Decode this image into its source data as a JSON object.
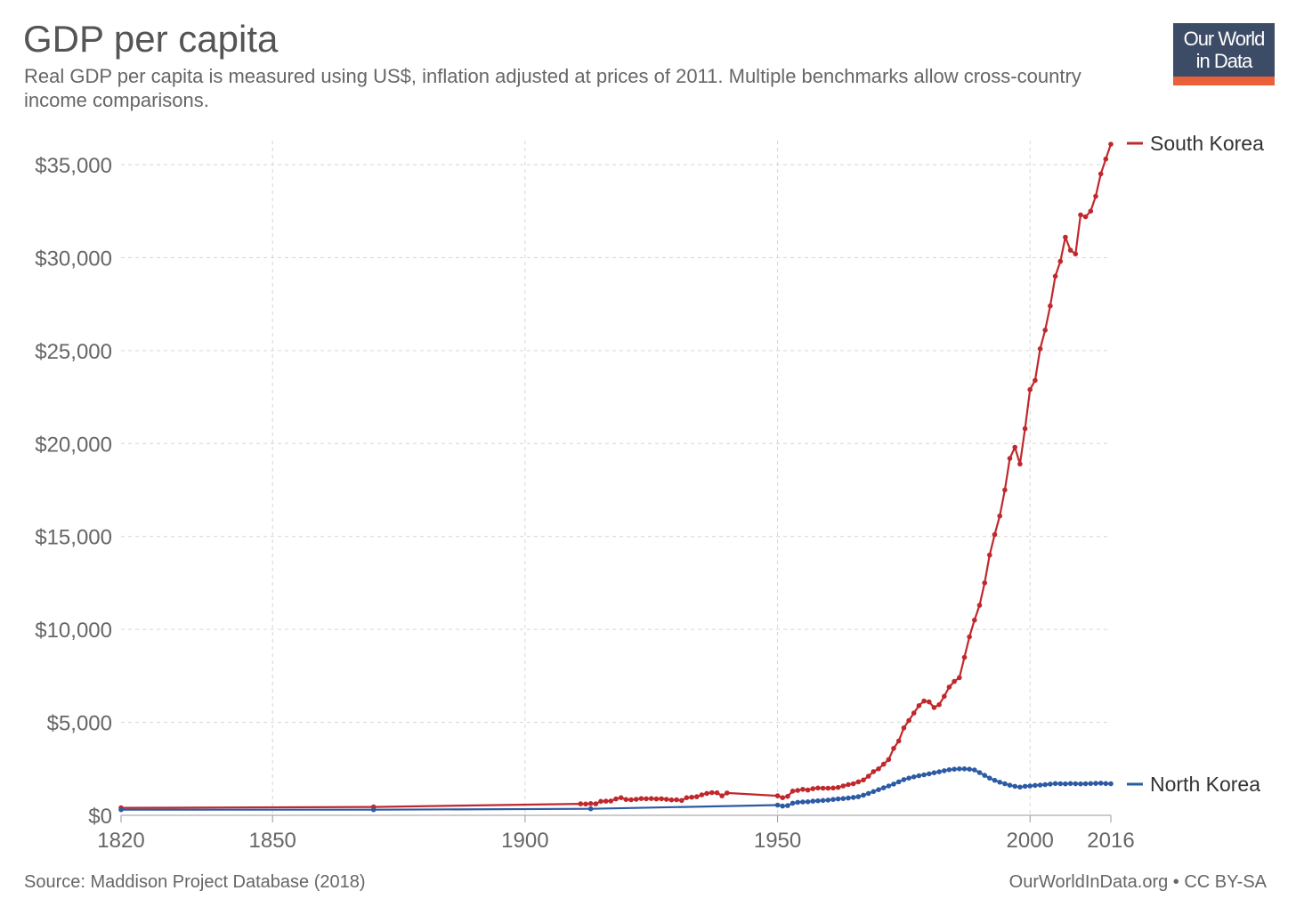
{
  "header": {
    "title": "GDP per capita",
    "subtitle": "Real GDP per capita is measured using US$, inflation adjusted at prices of 2011. Multiple benchmarks allow cross-country income comparisons."
  },
  "logo": {
    "line1": "Our World",
    "line2": "in Data",
    "bg_color": "#3d4c66",
    "accent_color": "#e9603a"
  },
  "footer": {
    "source": "Source: Maddison Project Database (2018)",
    "license": "OurWorldInData.org • CC BY-SA"
  },
  "chart_data": {
    "type": "line",
    "title": "GDP per capita",
    "xlabel": "",
    "ylabel": "",
    "xlim": [
      1820,
      2016
    ],
    "ylim": [
      0,
      35000
    ],
    "grid": true,
    "x_ticks": [
      1820,
      1850,
      1900,
      1950,
      2000,
      2016
    ],
    "x_tick_labels": [
      "1820",
      "1850",
      "1900",
      "1950",
      "2000",
      "2016"
    ],
    "y_ticks": [
      0,
      5000,
      10000,
      15000,
      20000,
      25000,
      30000,
      35000
    ],
    "y_tick_labels": [
      "$0",
      "$5,000",
      "$10,000",
      "$15,000",
      "$20,000",
      "$25,000",
      "$30,000",
      "$35,000"
    ],
    "legend_position": "right",
    "series": [
      {
        "name": "South Korea",
        "color": "#c0282c",
        "points": [
          [
            1820,
            400
          ],
          [
            1870,
            450
          ],
          [
            1911,
            620
          ],
          [
            1912,
            610
          ],
          [
            1913,
            630
          ],
          [
            1914,
            620
          ],
          [
            1915,
            750
          ],
          [
            1916,
            760
          ],
          [
            1917,
            770
          ],
          [
            1918,
            880
          ],
          [
            1919,
            950
          ],
          [
            1920,
            850
          ],
          [
            1921,
            840
          ],
          [
            1922,
            860
          ],
          [
            1923,
            900
          ],
          [
            1924,
            890
          ],
          [
            1925,
            900
          ],
          [
            1926,
            880
          ],
          [
            1927,
            890
          ],
          [
            1928,
            860
          ],
          [
            1929,
            830
          ],
          [
            1930,
            840
          ],
          [
            1931,
            800
          ],
          [
            1932,
            950
          ],
          [
            1933,
            970
          ],
          [
            1934,
            1000
          ],
          [
            1935,
            1100
          ],
          [
            1936,
            1180
          ],
          [
            1937,
            1220
          ],
          [
            1938,
            1210
          ],
          [
            1939,
            1050
          ],
          [
            1940,
            1200
          ],
          [
            1950,
            1050
          ],
          [
            1951,
            950
          ],
          [
            1952,
            1020
          ],
          [
            1953,
            1300
          ],
          [
            1954,
            1340
          ],
          [
            1955,
            1400
          ],
          [
            1956,
            1360
          ],
          [
            1957,
            1430
          ],
          [
            1958,
            1470
          ],
          [
            1959,
            1460
          ],
          [
            1960,
            1460
          ],
          [
            1961,
            1470
          ],
          [
            1962,
            1500
          ],
          [
            1963,
            1580
          ],
          [
            1964,
            1650
          ],
          [
            1965,
            1700
          ],
          [
            1966,
            1800
          ],
          [
            1967,
            1900
          ],
          [
            1968,
            2100
          ],
          [
            1969,
            2350
          ],
          [
            1970,
            2500
          ],
          [
            1971,
            2750
          ],
          [
            1972,
            3000
          ],
          [
            1973,
            3600
          ],
          [
            1974,
            4000
          ],
          [
            1975,
            4700
          ],
          [
            1976,
            5100
          ],
          [
            1977,
            5500
          ],
          [
            1978,
            5900
          ],
          [
            1979,
            6150
          ],
          [
            1980,
            6100
          ],
          [
            1981,
            5800
          ],
          [
            1982,
            5950
          ],
          [
            1983,
            6400
          ],
          [
            1984,
            6900
          ],
          [
            1985,
            7200
          ],
          [
            1986,
            7400
          ],
          [
            1987,
            8500
          ],
          [
            1988,
            9600
          ],
          [
            1989,
            10500
          ],
          [
            1990,
            11300
          ],
          [
            1991,
            12500
          ],
          [
            1992,
            14000
          ],
          [
            1993,
            15100
          ],
          [
            1994,
            16100
          ],
          [
            1995,
            17500
          ],
          [
            1996,
            19200
          ],
          [
            1997,
            19800
          ],
          [
            1998,
            18900
          ],
          [
            1999,
            20800
          ],
          [
            2000,
            22900
          ],
          [
            2001,
            23400
          ],
          [
            2002,
            25100
          ],
          [
            2003,
            26100
          ],
          [
            2004,
            27400
          ],
          [
            2005,
            29000
          ],
          [
            2006,
            29800
          ],
          [
            2007,
            31100
          ],
          [
            2008,
            30400
          ],
          [
            2009,
            30200
          ],
          [
            2010,
            32300
          ],
          [
            2011,
            32200
          ],
          [
            2012,
            32500
          ],
          [
            2013,
            33300
          ],
          [
            2014,
            34500
          ],
          [
            2015,
            35300
          ],
          [
            2016,
            36100
          ]
        ]
      },
      {
        "name": "North Korea",
        "color": "#2c5ba3",
        "points": [
          [
            1820,
            300
          ],
          [
            1870,
            300
          ],
          [
            1913,
            350
          ],
          [
            1950,
            550
          ],
          [
            1951,
            500
          ],
          [
            1952,
            520
          ],
          [
            1953,
            650
          ],
          [
            1954,
            700
          ],
          [
            1955,
            720
          ],
          [
            1956,
            730
          ],
          [
            1957,
            760
          ],
          [
            1958,
            780
          ],
          [
            1959,
            800
          ],
          [
            1960,
            820
          ],
          [
            1961,
            850
          ],
          [
            1962,
            880
          ],
          [
            1963,
            900
          ],
          [
            1964,
            930
          ],
          [
            1965,
            960
          ],
          [
            1966,
            1000
          ],
          [
            1967,
            1080
          ],
          [
            1968,
            1180
          ],
          [
            1969,
            1280
          ],
          [
            1970,
            1380
          ],
          [
            1971,
            1480
          ],
          [
            1972,
            1580
          ],
          [
            1973,
            1680
          ],
          [
            1974,
            1800
          ],
          [
            1975,
            1920
          ],
          [
            1976,
            2000
          ],
          [
            1977,
            2070
          ],
          [
            1978,
            2130
          ],
          [
            1979,
            2180
          ],
          [
            1980,
            2230
          ],
          [
            1981,
            2290
          ],
          [
            1982,
            2340
          ],
          [
            1983,
            2400
          ],
          [
            1984,
            2450
          ],
          [
            1985,
            2480
          ],
          [
            1986,
            2500
          ],
          [
            1987,
            2500
          ],
          [
            1988,
            2480
          ],
          [
            1989,
            2440
          ],
          [
            1990,
            2300
          ],
          [
            1991,
            2150
          ],
          [
            1992,
            2000
          ],
          [
            1993,
            1880
          ],
          [
            1994,
            1780
          ],
          [
            1995,
            1700
          ],
          [
            1996,
            1620
          ],
          [
            1997,
            1560
          ],
          [
            1998,
            1520
          ],
          [
            1999,
            1560
          ],
          [
            2000,
            1580
          ],
          [
            2001,
            1610
          ],
          [
            2002,
            1630
          ],
          [
            2003,
            1650
          ],
          [
            2004,
            1680
          ],
          [
            2005,
            1710
          ],
          [
            2006,
            1700
          ],
          [
            2007,
            1690
          ],
          [
            2008,
            1710
          ],
          [
            2009,
            1700
          ],
          [
            2010,
            1690
          ],
          [
            2011,
            1700
          ],
          [
            2012,
            1710
          ],
          [
            2013,
            1720
          ],
          [
            2014,
            1730
          ],
          [
            2015,
            1710
          ],
          [
            2016,
            1700
          ]
        ]
      }
    ]
  }
}
